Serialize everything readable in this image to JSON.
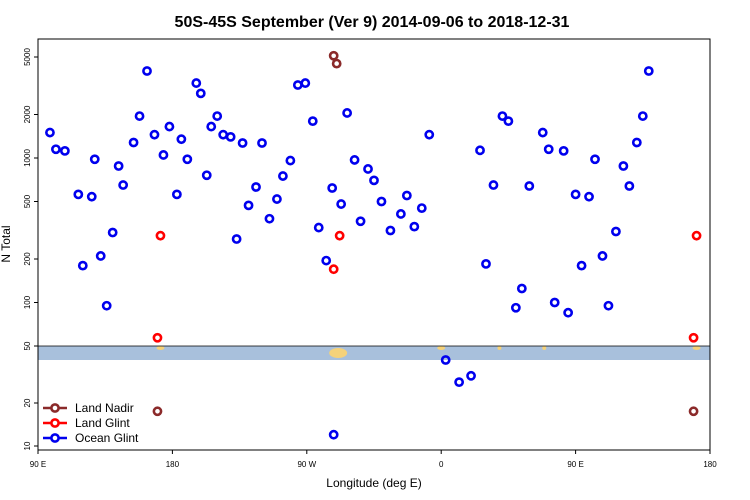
{
  "chart_data": {
    "type": "scatter",
    "title": "50S-45S September (Ver 9)   2014-09-06 to 2018-12-31",
    "xlabel": "Longitude (deg E)",
    "ylabel": "N Total",
    "y_scale": "log",
    "x_ticks": [
      {
        "value": 90,
        "label": "90 E"
      },
      {
        "value": 180,
        "label": "180"
      },
      {
        "value": 270,
        "label": "90 W"
      },
      {
        "value": 360,
        "label": "0"
      },
      {
        "value": 450,
        "label": "90 E"
      },
      {
        "value": 540,
        "label": "180"
      }
    ],
    "y_ticks": [
      {
        "value": 10,
        "label": "10"
      },
      {
        "value": 20,
        "label": "20"
      },
      {
        "value": 50,
        "label": "50"
      },
      {
        "value": 100,
        "label": "100"
      },
      {
        "value": 200,
        "label": "200"
      },
      {
        "value": 500,
        "label": "500"
      },
      {
        "value": 1000,
        "label": "1000"
      },
      {
        "value": 2000,
        "label": "2000"
      },
      {
        "value": 5000,
        "label": "5000"
      }
    ],
    "band_color": "#a8c0dc",
    "band_marker_color": "#f5d27a",
    "band_markers": [
      {
        "x": 172,
        "size": "small"
      },
      {
        "x": 291,
        "size": "large"
      },
      {
        "x": 360,
        "size": "small"
      },
      {
        "x": 399,
        "size": "tiny"
      },
      {
        "x": 429,
        "size": "tiny"
      },
      {
        "x": 531,
        "size": "small"
      }
    ],
    "legend": {
      "placement": "bottom-left"
    },
    "series": [
      {
        "name": "Land Nadir",
        "color": "#8b2a2a",
        "points": [
          {
            "x": 288,
            "y": 5100
          },
          {
            "x": 290,
            "y": 4500
          },
          {
            "x": 170,
            "y": 17.5
          },
          {
            "x": 529,
            "y": 17.5
          }
        ]
      },
      {
        "name": "Land Glint",
        "color": "#ff0000",
        "points": [
          {
            "x": 172,
            "y": 290
          },
          {
            "x": 292,
            "y": 290
          },
          {
            "x": 288,
            "y": 170
          },
          {
            "x": 170,
            "y": 57
          },
          {
            "x": 531,
            "y": 290
          },
          {
            "x": 529,
            "y": 57
          }
        ]
      },
      {
        "name": "Ocean Glint",
        "color": "#0000ee",
        "points": [
          {
            "x": 98,
            "y": 1500
          },
          {
            "x": 102,
            "y": 1150
          },
          {
            "x": 108,
            "y": 1120
          },
          {
            "x": 117,
            "y": 560
          },
          {
            "x": 120,
            "y": 180
          },
          {
            "x": 126,
            "y": 540
          },
          {
            "x": 128,
            "y": 980
          },
          {
            "x": 132,
            "y": 210
          },
          {
            "x": 136,
            "y": 95
          },
          {
            "x": 140,
            "y": 305
          },
          {
            "x": 144,
            "y": 880
          },
          {
            "x": 147,
            "y": 650
          },
          {
            "x": 154,
            "y": 1280
          },
          {
            "x": 158,
            "y": 1950
          },
          {
            "x": 163,
            "y": 4000
          },
          {
            "x": 168,
            "y": 1450
          },
          {
            "x": 174,
            "y": 1050
          },
          {
            "x": 178,
            "y": 1650
          },
          {
            "x": 183,
            "y": 560
          },
          {
            "x": 186,
            "y": 1350
          },
          {
            "x": 190,
            "y": 980
          },
          {
            "x": 196,
            "y": 3300
          },
          {
            "x": 199,
            "y": 2800
          },
          {
            "x": 203,
            "y": 760
          },
          {
            "x": 206,
            "y": 1650
          },
          {
            "x": 210,
            "y": 1950
          },
          {
            "x": 214,
            "y": 1450
          },
          {
            "x": 219,
            "y": 1400
          },
          {
            "x": 223,
            "y": 275
          },
          {
            "x": 227,
            "y": 1270
          },
          {
            "x": 231,
            "y": 470
          },
          {
            "x": 236,
            "y": 630
          },
          {
            "x": 240,
            "y": 1270
          },
          {
            "x": 245,
            "y": 380
          },
          {
            "x": 250,
            "y": 520
          },
          {
            "x": 254,
            "y": 750
          },
          {
            "x": 259,
            "y": 960
          },
          {
            "x": 264,
            "y": 3200
          },
          {
            "x": 269,
            "y": 3300
          },
          {
            "x": 274,
            "y": 1800
          },
          {
            "x": 278,
            "y": 330
          },
          {
            "x": 283,
            "y": 195
          },
          {
            "x": 287,
            "y": 620
          },
          {
            "x": 293,
            "y": 480
          },
          {
            "x": 297,
            "y": 2050
          },
          {
            "x": 302,
            "y": 970
          },
          {
            "x": 306,
            "y": 365
          },
          {
            "x": 311,
            "y": 840
          },
          {
            "x": 315,
            "y": 700
          },
          {
            "x": 320,
            "y": 500
          },
          {
            "x": 288,
            "y": 12
          },
          {
            "x": 326,
            "y": 315
          },
          {
            "x": 333,
            "y": 410
          },
          {
            "x": 337,
            "y": 550
          },
          {
            "x": 342,
            "y": 335
          },
          {
            "x": 347,
            "y": 450
          },
          {
            "x": 352,
            "y": 1450
          },
          {
            "x": 363,
            "y": 40
          },
          {
            "x": 372,
            "y": 28
          },
          {
            "x": 380,
            "y": 31
          },
          {
            "x": 386,
            "y": 1130
          },
          {
            "x": 390,
            "y": 185
          },
          {
            "x": 395,
            "y": 650
          },
          {
            "x": 401,
            "y": 1950
          },
          {
            "x": 405,
            "y": 1800
          },
          {
            "x": 410,
            "y": 92
          },
          {
            "x": 414,
            "y": 125
          },
          {
            "x": 419,
            "y": 640
          },
          {
            "x": 428,
            "y": 1500
          },
          {
            "x": 432,
            "y": 1150
          },
          {
            "x": 436,
            "y": 100
          },
          {
            "x": 442,
            "y": 1120
          },
          {
            "x": 445,
            "y": 85
          },
          {
            "x": 450,
            "y": 560
          },
          {
            "x": 454,
            "y": 180
          },
          {
            "x": 459,
            "y": 540
          },
          {
            "x": 463,
            "y": 980
          },
          {
            "x": 468,
            "y": 210
          },
          {
            "x": 472,
            "y": 95
          },
          {
            "x": 477,
            "y": 310
          },
          {
            "x": 482,
            "y": 880
          },
          {
            "x": 486,
            "y": 640
          },
          {
            "x": 491,
            "y": 1280
          },
          {
            "x": 495,
            "y": 1950
          },
          {
            "x": 499,
            "y": 4000
          }
        ]
      }
    ]
  }
}
